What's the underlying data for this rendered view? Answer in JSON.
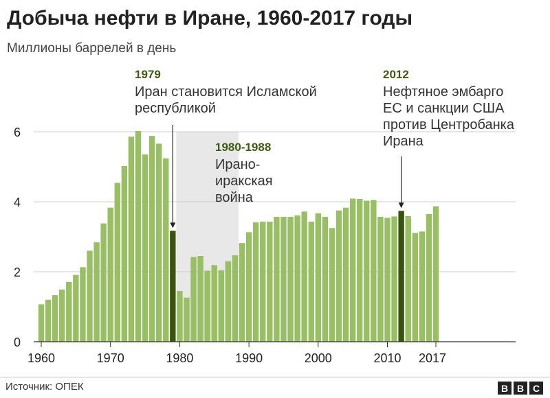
{
  "title": "Добыча нефти в Иране, 1960-2017 годы",
  "subtitle": "Миллионы баррелей в день",
  "source": "Источник: ОПЕК",
  "logo": [
    "B",
    "B",
    "C"
  ],
  "colors": {
    "bar": "#98bf64",
    "highlight": "#3a5410",
    "shade": "#e8e8e8",
    "grid": "#cccccc",
    "annotation_year": "#3f5a12"
  },
  "chart_data": {
    "type": "bar",
    "title": "Добыча нефти в Иране, 1960-2017 годы",
    "ylabel": "Миллионы баррелей в день",
    "xlabel": "",
    "ylim": [
      0,
      6
    ],
    "yticks": [
      0,
      2,
      4,
      6
    ],
    "xticks": [
      1960,
      1970,
      1980,
      1990,
      2000,
      2010,
      2017
    ],
    "grid": true,
    "categories": [
      1960,
      1961,
      1962,
      1963,
      1964,
      1965,
      1966,
      1967,
      1968,
      1969,
      1970,
      1971,
      1972,
      1973,
      1974,
      1975,
      1976,
      1977,
      1978,
      1979,
      1980,
      1981,
      1982,
      1983,
      1984,
      1985,
      1986,
      1987,
      1988,
      1989,
      1990,
      1991,
      1992,
      1993,
      1994,
      1995,
      1996,
      1997,
      1998,
      1999,
      2000,
      2001,
      2002,
      2003,
      2004,
      2005,
      2006,
      2007,
      2008,
      2009,
      2010,
      2011,
      2012,
      2013,
      2014,
      2015,
      2016,
      2017
    ],
    "values": [
      1.07,
      1.2,
      1.33,
      1.49,
      1.71,
      1.91,
      2.13,
      2.6,
      2.84,
      3.38,
      3.83,
      4.54,
      5.02,
      5.86,
      6.02,
      5.35,
      5.88,
      5.66,
      5.24,
      3.17,
      1.45,
      1.26,
      2.42,
      2.45,
      2.03,
      2.19,
      2.04,
      2.3,
      2.47,
      2.82,
      3.13,
      3.41,
      3.43,
      3.43,
      3.57,
      3.57,
      3.57,
      3.61,
      3.72,
      3.43,
      3.67,
      3.57,
      3.25,
      3.75,
      3.83,
      4.09,
      4.08,
      4.03,
      4.05,
      3.57,
      3.54,
      3.58,
      3.74,
      3.59,
      3.11,
      3.15,
      3.65,
      3.87
    ],
    "highlighted": [
      1979,
      2012
    ],
    "shaded_range": [
      1980,
      1988
    ],
    "annotations": [
      {
        "year": "1979",
        "text": [
          "Иран становится Исламской",
          "республикой"
        ]
      },
      {
        "year": "1980-1988",
        "text": [
          "Ирано-",
          "иракская",
          "война"
        ]
      },
      {
        "year": "2012",
        "text": [
          "Нефтяное эмбарго",
          "ЕС и санкции США",
          "против Центробанка",
          "Ирана"
        ]
      }
    ]
  }
}
